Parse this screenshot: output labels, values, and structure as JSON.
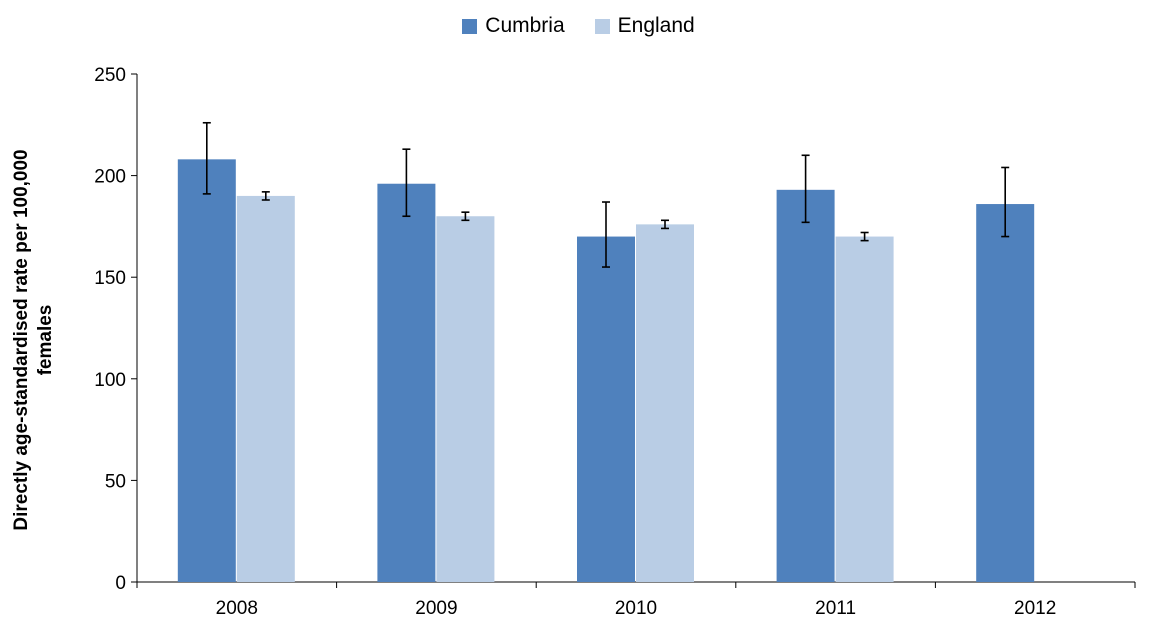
{
  "chart_data": {
    "type": "bar",
    "categories": [
      "2008",
      "2009",
      "2010",
      "2011",
      "2012"
    ],
    "series": [
      {
        "name": "Cumbria",
        "color": "#4f81bd",
        "values": [
          208,
          196,
          170,
          193,
          186
        ],
        "error_low": [
          191,
          180,
          155,
          177,
          170
        ],
        "error_high": [
          226,
          213,
          187,
          210,
          204
        ]
      },
      {
        "name": "England",
        "color": "#b9cde5",
        "values": [
          190,
          180,
          176,
          170,
          null
        ],
        "error_low": [
          188,
          178,
          174,
          168,
          null
        ],
        "error_high": [
          192,
          182,
          178,
          172,
          null
        ]
      }
    ],
    "ylabel_lines": [
      "Directly age-standardised rate per 100,000",
      "females"
    ],
    "yticks": [
      "0",
      "50",
      "100",
      "150",
      "200",
      "250"
    ],
    "ylim": [
      0,
      250
    ],
    "legend_position": "top-center",
    "grid": false
  }
}
